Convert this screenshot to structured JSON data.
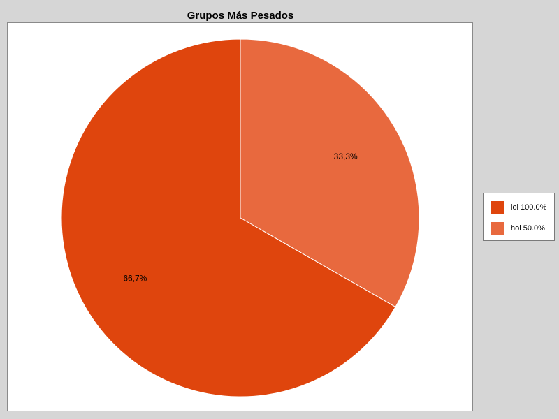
{
  "chart_data": {
    "type": "pie",
    "title": "Grupos Más Pesados",
    "categories": [
      "lol 100.0%",
      "hol 50.0%"
    ],
    "values": [
      66.7,
      33.3
    ],
    "slice_labels": [
      "66,7%",
      "33,3%"
    ],
    "colors": [
      "#df450d",
      "#e8693e"
    ],
    "legend_position": "right"
  }
}
